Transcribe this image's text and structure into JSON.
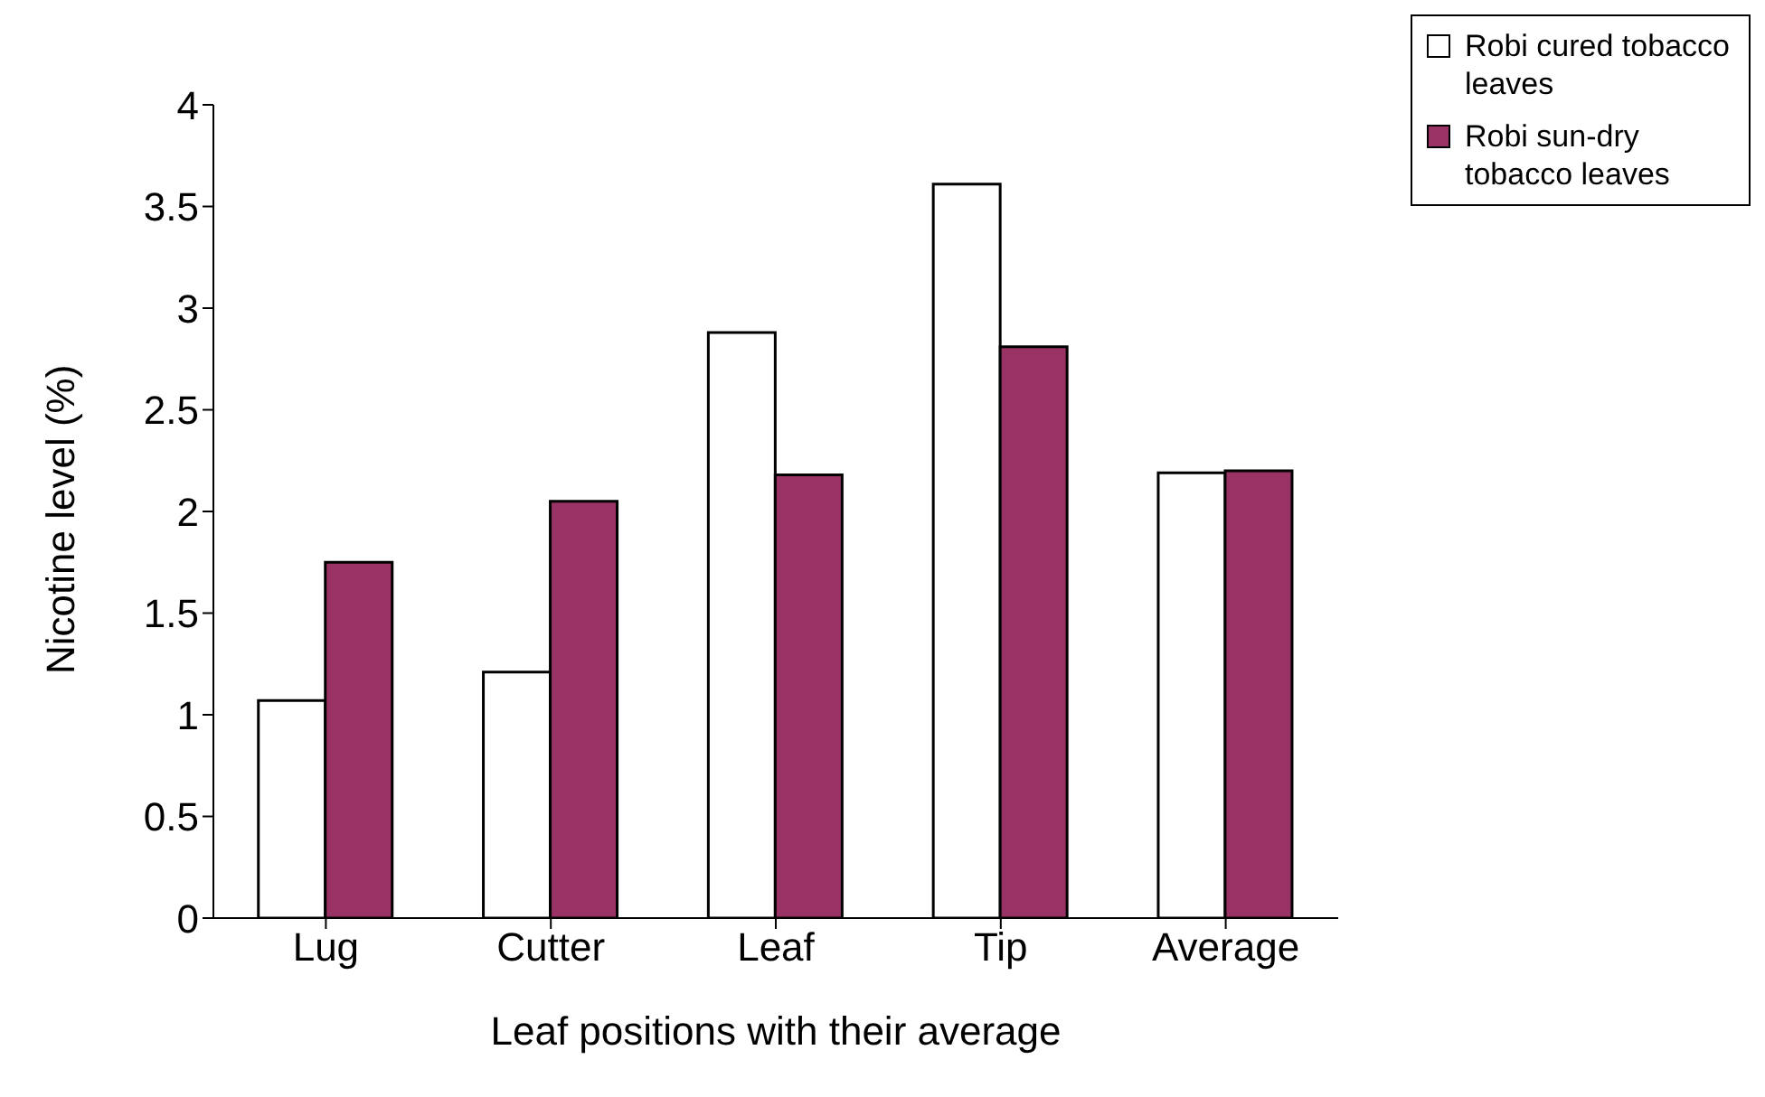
{
  "chart_data": {
    "type": "bar",
    "xlabel": "Leaf positions with their average",
    "ylabel": "Nicotine level (%)",
    "categories": [
      "Lug",
      "Cutter",
      "Leaf",
      "Tip",
      "Average"
    ],
    "series": [
      {
        "name": "Robi cured tobacco leaves",
        "color": "#ffffff",
        "values": [
          1.07,
          1.21,
          2.88,
          3.61,
          2.19
        ]
      },
      {
        "name": "Robi sun-dry tobacco leaves",
        "color": "#993366",
        "values": [
          1.75,
          2.05,
          2.18,
          2.81,
          2.2
        ]
      }
    ],
    "ylim": [
      0,
      4
    ],
    "yticks": [
      0,
      0.5,
      1,
      1.5,
      2,
      2.5,
      3,
      3.5,
      4
    ],
    "grid": false,
    "legend": "top right"
  }
}
